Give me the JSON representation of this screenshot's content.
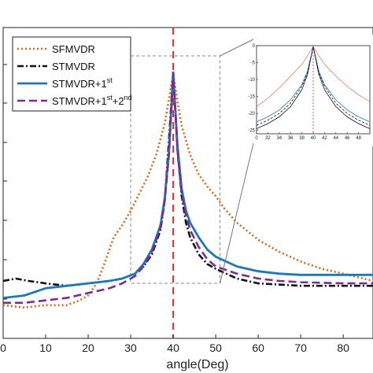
{
  "chart_data": {
    "type": "line",
    "xlabel": "angle(Deg)",
    "xlim": [
      0,
      87
    ],
    "x_ticks": [
      "0",
      "10",
      "20",
      "30",
      "40",
      "50",
      "60",
      "70",
      "80"
    ],
    "y_visible_range": [
      0,
      1
    ],
    "grid": false,
    "legend": "top-left",
    "marker_line": {
      "x": 40,
      "color": "#e03030",
      "style": "dashed"
    },
    "zoom_box": {
      "x": [
        30,
        51
      ]
    },
    "legend_entries": [
      {
        "series": 0,
        "base": "SFMVDR"
      },
      {
        "series": 1,
        "base": "STMVDR"
      },
      {
        "series": 2,
        "base": "STMVDR+1",
        "sup1": "st"
      },
      {
        "series": 3,
        "base": "STMVDR+1",
        "sup1": "st",
        "mid": "+2",
        "sup2": "nd"
      }
    ],
    "series": [
      {
        "color": "#d2691e",
        "dash": "2,3",
        "width": 2.6,
        "x": [
          0,
          5,
          10,
          15,
          18,
          20,
          22,
          24,
          26,
          28,
          30,
          32,
          34,
          36,
          38,
          39,
          40,
          41,
          42,
          44,
          46,
          48,
          50,
          52,
          55,
          60,
          65,
          70,
          75,
          80,
          87
        ],
        "y": [
          0.02,
          0.01,
          0.02,
          0.02,
          0.04,
          0.06,
          0.11,
          0.2,
          0.3,
          0.35,
          0.41,
          0.48,
          0.55,
          0.64,
          0.77,
          0.87,
          0.98,
          0.86,
          0.76,
          0.64,
          0.56,
          0.51,
          0.47,
          0.42,
          0.36,
          0.29,
          0.24,
          0.2,
          0.17,
          0.15,
          0.12
        ]
      },
      {
        "color": "#111111",
        "dash": "8,3,2,3",
        "width": 2.6,
        "x": [
          0,
          3,
          6,
          10,
          15,
          20,
          25,
          28,
          31,
          33,
          35,
          37,
          38,
          39,
          40,
          41,
          42,
          43,
          44,
          46,
          48,
          50,
          55,
          60,
          70,
          80,
          87
        ],
        "y": [
          0.12,
          0.13,
          0.12,
          0.11,
          0.1,
          0.11,
          0.12,
          0.13,
          0.15,
          0.18,
          0.23,
          0.33,
          0.45,
          0.7,
          0.98,
          0.66,
          0.47,
          0.36,
          0.3,
          0.23,
          0.19,
          0.17,
          0.13,
          0.11,
          0.1,
          0.1,
          0.1
        ]
      },
      {
        "color": "#1f77b4",
        "dash": "",
        "width": 2.8,
        "x": [
          0,
          5,
          10,
          15,
          20,
          25,
          28,
          31,
          33,
          35,
          37,
          38,
          39,
          40,
          41,
          42,
          43,
          44,
          46,
          48,
          50,
          55,
          60,
          65,
          70,
          80,
          87
        ],
        "y": [
          0.05,
          0.06,
          0.09,
          0.1,
          0.11,
          0.12,
          0.13,
          0.15,
          0.19,
          0.25,
          0.35,
          0.46,
          0.65,
          0.98,
          0.68,
          0.5,
          0.41,
          0.36,
          0.3,
          0.25,
          0.22,
          0.18,
          0.16,
          0.15,
          0.145,
          0.145,
          0.145
        ]
      },
      {
        "color": "#7b2d8e",
        "dash": "10,5",
        "width": 2.6,
        "x": [
          0,
          5,
          10,
          15,
          20,
          25,
          28,
          31,
          33,
          35,
          37,
          38,
          39,
          40,
          41,
          42,
          43,
          44,
          46,
          48,
          50,
          55,
          60,
          65,
          70,
          80,
          87
        ],
        "y": [
          0.03,
          0.03,
          0.04,
          0.05,
          0.07,
          0.09,
          0.11,
          0.14,
          0.18,
          0.24,
          0.34,
          0.45,
          0.64,
          0.98,
          0.66,
          0.48,
          0.39,
          0.33,
          0.26,
          0.21,
          0.18,
          0.15,
          0.13,
          0.12,
          0.115,
          0.11,
          0.11
        ]
      }
    ],
    "inset": {
      "xlim": [
        30,
        50
      ],
      "ylim": [
        -26,
        0
      ],
      "x_ticks": [
        "0",
        "32",
        "34",
        "36",
        "38",
        "40",
        "42",
        "44",
        "46",
        "48"
      ],
      "y_ticks": [
        "0",
        "-5",
        "-10",
        "-15",
        "-20",
        "-25"
      ],
      "marker_line": {
        "x": 40,
        "color": "#e03030"
      },
      "series": [
        {
          "color": "#e8826a",
          "dash": "",
          "width": 0.8,
          "x": [
            30,
            32,
            34,
            36,
            38,
            39,
            40,
            41,
            42,
            44,
            46,
            48,
            50
          ],
          "y": [
            -18,
            -15.5,
            -12.5,
            -9,
            -5.5,
            -3,
            -0.3,
            -3,
            -5.5,
            -9,
            -12,
            -14.5,
            -16.5
          ]
        },
        {
          "color": "#111111",
          "dash": "",
          "width": 0.8,
          "x": [
            30,
            32,
            34,
            36,
            38,
            39,
            40,
            41,
            42,
            44,
            46,
            48,
            50
          ],
          "y": [
            -24.5,
            -23,
            -21,
            -18,
            -13,
            -8.5,
            -0.3,
            -8.5,
            -13,
            -18,
            -21,
            -23,
            -24.5
          ]
        },
        {
          "color": "#1f77b4",
          "dash": "",
          "width": 0.8,
          "x": [
            30,
            32,
            34,
            36,
            38,
            39,
            40,
            41,
            42,
            44,
            46,
            48,
            50
          ],
          "y": [
            -22.5,
            -21,
            -19,
            -16,
            -11.5,
            -7.5,
            -0.3,
            -7.5,
            -11.5,
            -16,
            -19,
            -21,
            -22.5
          ]
        },
        {
          "color": "#111111",
          "dash": "3,2",
          "width": 0.8,
          "x": [
            30,
            32,
            34,
            36,
            38,
            39,
            40,
            41,
            42,
            44,
            46,
            48,
            50
          ],
          "y": [
            -23.5,
            -22,
            -20,
            -17,
            -12,
            -8,
            -0.3,
            -8,
            -12,
            -17,
            -20,
            -22,
            -23.5
          ]
        }
      ]
    }
  }
}
